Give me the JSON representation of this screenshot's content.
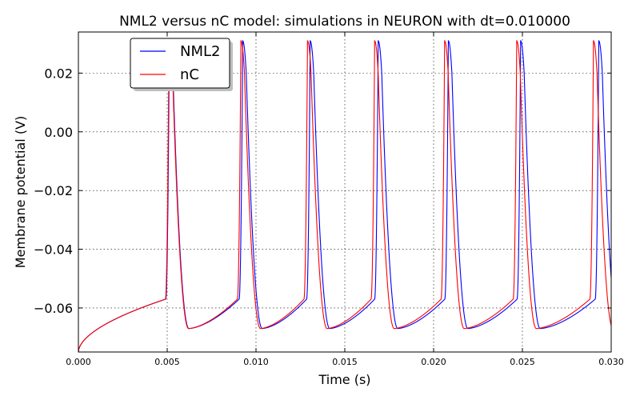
{
  "chart_data": {
    "type": "line",
    "title": "NML2 versus nC model: simulations in NEURON with dt=0.010000",
    "xlabel": "Time (s)",
    "ylabel": "Membrane potential (V)",
    "xlim": [
      0.0,
      0.03
    ],
    "ylim": [
      -0.075,
      0.034
    ],
    "xticks": [
      0.0,
      0.005,
      0.01,
      0.015,
      0.02,
      0.025,
      0.03
    ],
    "xtick_labels": [
      "0.000",
      "0.005",
      "0.010",
      "0.015",
      "0.020",
      "0.025",
      "0.030"
    ],
    "yticks": [
      -0.06,
      -0.04,
      -0.02,
      0.0,
      0.02
    ],
    "ytick_labels": [
      "−0.06",
      "−0.04",
      "−0.02",
      "0.00",
      "0.02"
    ],
    "grid": true,
    "legend_position": "top-left",
    "series": [
      {
        "name": "NML2",
        "color": "#0000ff",
        "start_value": -0.075,
        "spike_times": [
          0.00512,
          0.00925,
          0.01305,
          0.01688,
          0.02083,
          0.0249,
          0.0293
        ],
        "spike_peak": 0.031,
        "trough_value": -0.067
      },
      {
        "name": "nC",
        "color": "#ff0000",
        "start_value": -0.075,
        "spike_times": [
          0.0051,
          0.00915,
          0.0129,
          0.01668,
          0.02062,
          0.02468,
          0.029
        ],
        "spike_peak": 0.031,
        "trough_value": -0.067
      }
    ]
  }
}
